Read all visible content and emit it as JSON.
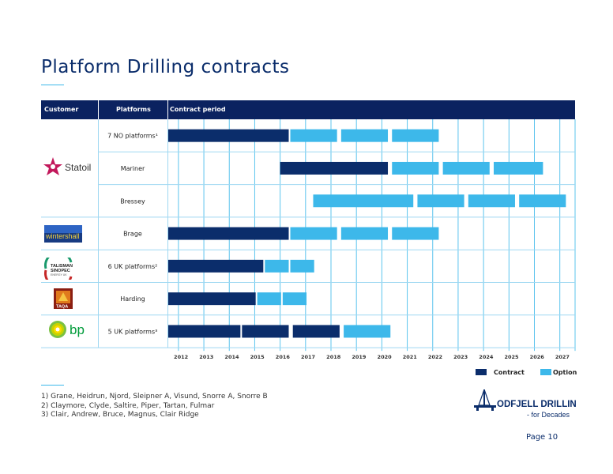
{
  "title": "Platform Drilling contracts",
  "table_headers": {
    "customer": "Customer",
    "platforms": "Platforms",
    "contract_period": "Contract period"
  },
  "customers": [
    {
      "name": "Statoil",
      "rows": [
        0,
        1,
        2
      ]
    },
    {
      "name": "wintershall",
      "rows": [
        3
      ]
    },
    {
      "name": "TALISMAN SINOPEC ENERGY UK",
      "rows": [
        4
      ]
    },
    {
      "name": "TAQA",
      "rows": [
        5
      ]
    },
    {
      "name": "bp",
      "rows": [
        6
      ]
    }
  ],
  "footnotes": [
    "1)   Grane, Heidrun, Njord, Sleipner A, Visund, Snorre A, Snorre B",
    "2)   Claymore, Clyde, Saltire, Piper, Tartan, Fulmar",
    "3)   Clair, Andrew, Bruce, Magnus, Clair Ridge"
  ],
  "legend": {
    "contract": "Contract",
    "option": "Option"
  },
  "company": {
    "name": "ODFJELL DRILLING",
    "tagline": "- for Decades"
  },
  "page": "Page 10",
  "colors": {
    "contract": "#0b2d6b",
    "option": "#3db8ea",
    "header": "#0b2260",
    "grid": "#5cc4ee",
    "row_rule": "#9fd8f2"
  },
  "chart_data": {
    "type": "gantt",
    "years": [
      "2012",
      "2013",
      "2014",
      "2015",
      "2016",
      "2017",
      "2018",
      "2019",
      "2020",
      "2021",
      "2022",
      "2023",
      "2024",
      "2025",
      "2026",
      "2027"
    ],
    "x_range": [
      2011.6,
      2027.6
    ],
    "rows": [
      {
        "label": "7 NO platforms¹",
        "segments": [
          {
            "kind": "contract",
            "start": 2011.6,
            "end": 2016.4
          },
          {
            "kind": "option",
            "start": 2016.4,
            "end": 2018.3
          },
          {
            "kind": "option",
            "start": 2018.4,
            "end": 2020.3
          },
          {
            "kind": "option",
            "start": 2020.4,
            "end": 2022.3
          }
        ]
      },
      {
        "label": "Mariner",
        "segments": [
          {
            "kind": "contract",
            "start": 2016.0,
            "end": 2020.3
          },
          {
            "kind": "option",
            "start": 2020.4,
            "end": 2022.3
          },
          {
            "kind": "option",
            "start": 2022.4,
            "end": 2024.3
          },
          {
            "kind": "option",
            "start": 2024.4,
            "end": 2026.4
          }
        ]
      },
      {
        "label": "Bressey",
        "segments": [
          {
            "kind": "option",
            "start": 2017.3,
            "end": 2021.3
          },
          {
            "kind": "option",
            "start": 2021.4,
            "end": 2023.3
          },
          {
            "kind": "option",
            "start": 2023.4,
            "end": 2025.3
          },
          {
            "kind": "option",
            "start": 2025.4,
            "end": 2027.3
          }
        ]
      },
      {
        "label": "Brage",
        "segments": [
          {
            "kind": "contract",
            "start": 2011.6,
            "end": 2016.4
          },
          {
            "kind": "option",
            "start": 2016.4,
            "end": 2018.3
          },
          {
            "kind": "option",
            "start": 2018.4,
            "end": 2020.3
          },
          {
            "kind": "option",
            "start": 2020.4,
            "end": 2022.3
          }
        ]
      },
      {
        "label": "6 UK  platforms²",
        "segments": [
          {
            "kind": "contract",
            "start": 2011.6,
            "end": 2015.4
          },
          {
            "kind": "option",
            "start": 2015.4,
            "end": 2016.4
          },
          {
            "kind": "option",
            "start": 2016.4,
            "end": 2017.4
          }
        ]
      },
      {
        "label": "Harding",
        "segments": [
          {
            "kind": "contract",
            "start": 2011.6,
            "end": 2015.1
          },
          {
            "kind": "option",
            "start": 2015.1,
            "end": 2016.1
          },
          {
            "kind": "option",
            "start": 2016.1,
            "end": 2017.1
          }
        ]
      },
      {
        "label": "5 UK platforms³",
        "segments": [
          {
            "kind": "contract",
            "start": 2011.6,
            "end": 2014.5
          },
          {
            "kind": "contract",
            "start": 2014.5,
            "end": 2016.4
          },
          {
            "kind": "contract",
            "start": 2016.5,
            "end": 2018.4
          },
          {
            "kind": "option",
            "start": 2018.5,
            "end": 2020.4
          }
        ]
      }
    ],
    "legend_position": "bottom-right"
  }
}
